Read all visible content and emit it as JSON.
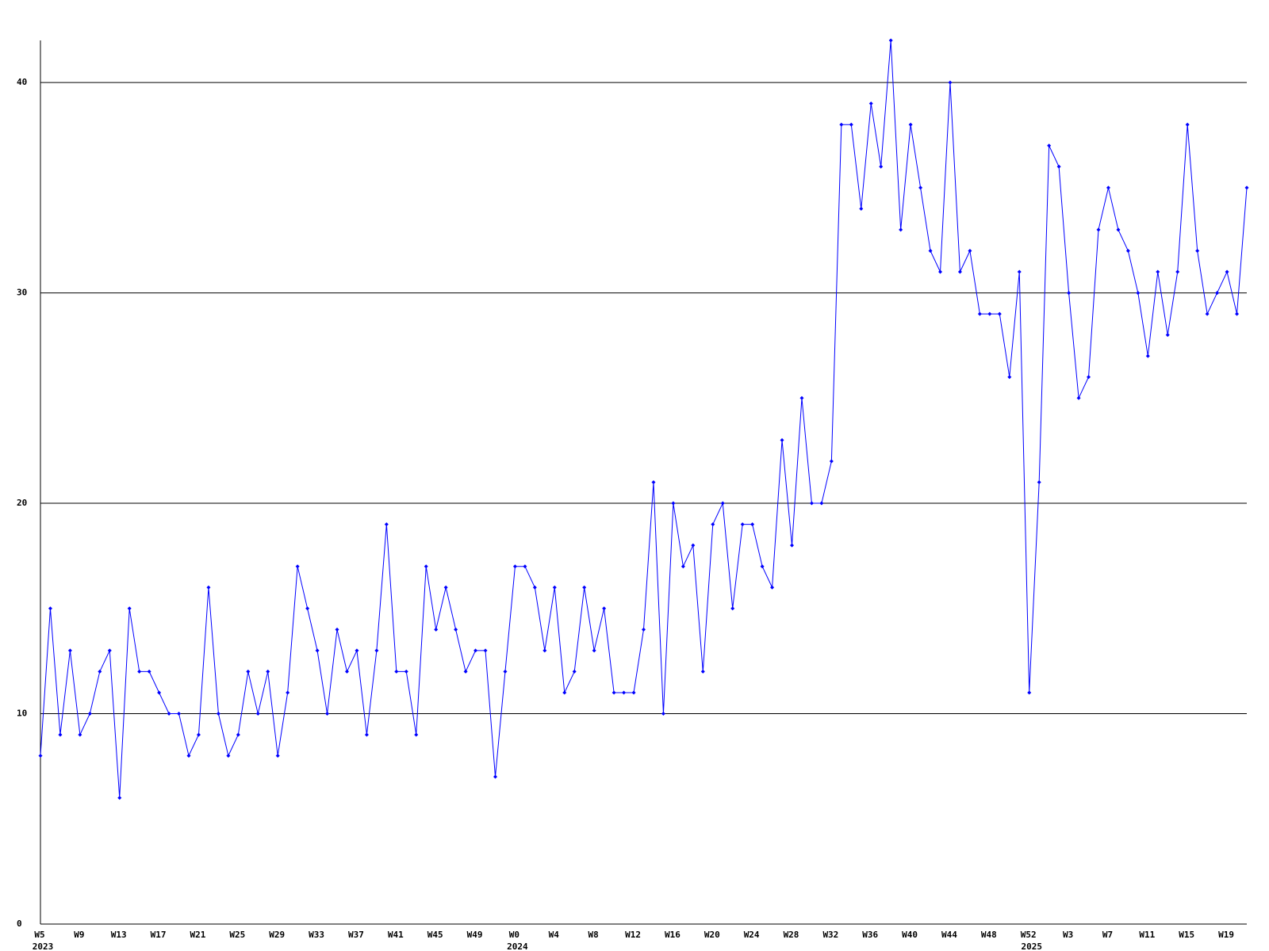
{
  "chart_data": {
    "type": "line",
    "categories": [
      "W5",
      null,
      null,
      null,
      "W9",
      null,
      null,
      null,
      "W13",
      null,
      null,
      null,
      "W17",
      null,
      null,
      null,
      "W21",
      null,
      null,
      null,
      "W25",
      null,
      null,
      null,
      "W29",
      null,
      null,
      null,
      "W33",
      null,
      null,
      null,
      "W37",
      null,
      null,
      null,
      "W41",
      null,
      null,
      null,
      "W45",
      null,
      null,
      null,
      "W49",
      null,
      null,
      null,
      "W0",
      null,
      null,
      null,
      "W4",
      null,
      null,
      null,
      "W8",
      null,
      null,
      null,
      "W12",
      null,
      null,
      null,
      "W16",
      null,
      null,
      null,
      "W20",
      null,
      null,
      null,
      "W24",
      null,
      null,
      null,
      "W28",
      null,
      null,
      null,
      "W32",
      null,
      null,
      null,
      "W36",
      null,
      null,
      null,
      "W40",
      null,
      null,
      null,
      "W44",
      null,
      null,
      null,
      "W48",
      null,
      null,
      null,
      "W52",
      null,
      null,
      null,
      "W3",
      null,
      null,
      null,
      "W7",
      null,
      null,
      null,
      "W11",
      null,
      null,
      null,
      "W15",
      null,
      null,
      null,
      "W19",
      null,
      null
    ],
    "category_years": [
      "2023",
      null,
      null,
      null,
      null,
      null,
      null,
      null,
      null,
      null,
      null,
      null,
      null,
      null,
      null,
      null,
      null,
      null,
      null,
      null,
      null,
      null,
      null,
      null,
      null,
      null,
      null,
      null,
      null,
      null,
      null,
      null,
      null,
      null,
      null,
      null,
      null,
      null,
      null,
      null,
      null,
      null,
      null,
      null,
      null,
      null,
      null,
      null,
      "2024",
      null,
      null,
      null,
      null,
      null,
      null,
      null,
      null,
      null,
      null,
      null,
      null,
      null,
      null,
      null,
      null,
      null,
      null,
      null,
      null,
      null,
      null,
      null,
      null,
      null,
      null,
      null,
      null,
      null,
      null,
      null,
      null,
      null,
      null,
      null,
      null,
      null,
      null,
      null,
      null,
      null,
      null,
      null,
      null,
      null,
      null,
      null,
      null,
      null,
      null,
      null,
      "2025",
      null,
      null,
      null,
      null,
      null,
      null,
      null,
      null,
      null,
      null,
      null,
      null,
      null,
      null,
      null,
      null,
      null,
      null,
      null,
      null,
      null
    ],
    "series": [
      {
        "color": "#0000ff",
        "values": [
          8,
          15,
          9,
          13,
          9,
          10,
          12,
          13,
          6,
          15,
          12,
          12,
          11,
          10,
          10,
          8,
          9,
          16,
          10,
          8,
          9,
          12,
          10,
          12,
          8,
          11,
          17,
          15,
          13,
          10,
          14,
          12,
          13,
          9,
          13,
          19,
          12,
          12,
          9,
          17,
          14,
          16,
          14,
          12,
          13,
          13,
          7,
          12,
          17,
          17,
          16,
          13,
          16,
          11,
          12,
          16,
          13,
          15,
          11,
          11,
          11,
          14,
          21,
          10,
          20,
          17,
          18,
          12,
          19,
          20,
          15,
          19,
          19,
          17,
          16,
          23,
          18,
          25,
          20,
          20,
          22,
          38,
          38,
          34,
          39,
          36,
          42,
          33,
          38,
          35,
          32,
          31,
          40,
          31,
          32,
          29,
          29,
          29,
          26,
          31,
          11,
          21,
          37,
          36,
          30,
          25,
          26,
          33,
          35,
          33,
          32,
          30,
          27,
          31,
          28,
          31,
          38,
          32,
          29,
          30,
          31,
          29,
          35
        ]
      }
    ],
    "ylim": [
      0,
      42
    ],
    "yticks": [
      0,
      10,
      20,
      30,
      40
    ],
    "grid": true,
    "markers": true
  }
}
